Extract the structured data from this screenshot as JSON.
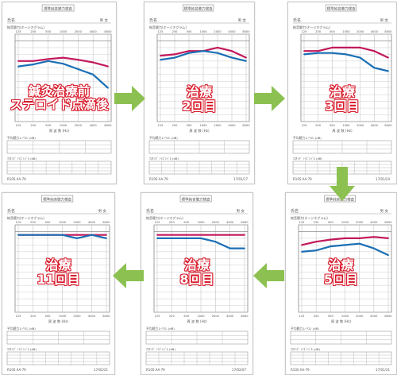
{
  "colors": {
    "right_ear": "#c2185b",
    "left_ear": "#1a6fb5",
    "arrow": "#8cc152",
    "label": "#d81b2b",
    "grid": "#9a9a9a"
  },
  "form": {
    "header_label": "標準純音聴力検査",
    "name_label": "氏名",
    "sex_label": "男 女",
    "title_line": "純音聴力(オージオグラム)",
    "freqs": [
      "125",
      "250",
      "500",
      "1000",
      "2000",
      "4000",
      "8000"
    ],
    "axis_label": "周 波 数 (Hz)",
    "table1_title": "平均聴力レベル (dB)",
    "table2_title": "ﾏｽｷﾝｸﾞ ﾉｲｽﾞﾚﾍﾞﾙ (dB)",
    "footer_code": "R10S AA-79"
  },
  "pages": [
    {
      "id": "before",
      "overlay": [
        "鍼灸治療前",
        "ステロイド点滴後"
      ],
      "date": ""
    },
    {
      "id": "t2",
      "overlay": [
        "治療",
        "2回目"
      ],
      "date": "17/01/17"
    },
    {
      "id": "t3",
      "overlay": [
        "治療",
        "3回目"
      ],
      "date": "17/01/24"
    },
    {
      "id": "t5",
      "overlay": [
        "治療",
        "5回目"
      ],
      "date": "17/01/31"
    },
    {
      "id": "t8",
      "overlay": [
        "治療",
        "8回目"
      ],
      "date": "17/02/07"
    },
    {
      "id": "t11",
      "overlay": [
        "治療",
        "11回目"
      ],
      "date": "17/02/21"
    }
  ],
  "audiograms": {
    "before": {
      "right": [
        30,
        30,
        27,
        25,
        28,
        32,
        38
      ],
      "left": [
        38,
        35,
        30,
        34,
        42,
        50,
        70
      ]
    },
    "t2": {
      "right": [
        22,
        20,
        15,
        15,
        10,
        15,
        25
      ],
      "left": [
        28,
        25,
        18,
        15,
        18,
        25,
        30
      ]
    },
    "t3": {
      "right": [
        15,
        15,
        10,
        10,
        10,
        15,
        25
      ],
      "left": [
        20,
        18,
        18,
        20,
        25,
        40,
        45
      ]
    },
    "t5": {
      "right": [
        20,
        15,
        12,
        10,
        10,
        8,
        10
      ],
      "left": [
        30,
        28,
        22,
        20,
        18,
        25,
        35
      ]
    },
    "t8": {
      "right": [
        5,
        5,
        5,
        5,
        5,
        5,
        5
      ],
      "left": [
        10,
        10,
        10,
        10,
        15,
        25,
        25
      ]
    },
    "t11": {
      "right": [
        5,
        5,
        5,
        5,
        5,
        5,
        5
      ],
      "left": [
        5,
        5,
        5,
        5,
        10,
        5,
        10
      ]
    }
  }
}
